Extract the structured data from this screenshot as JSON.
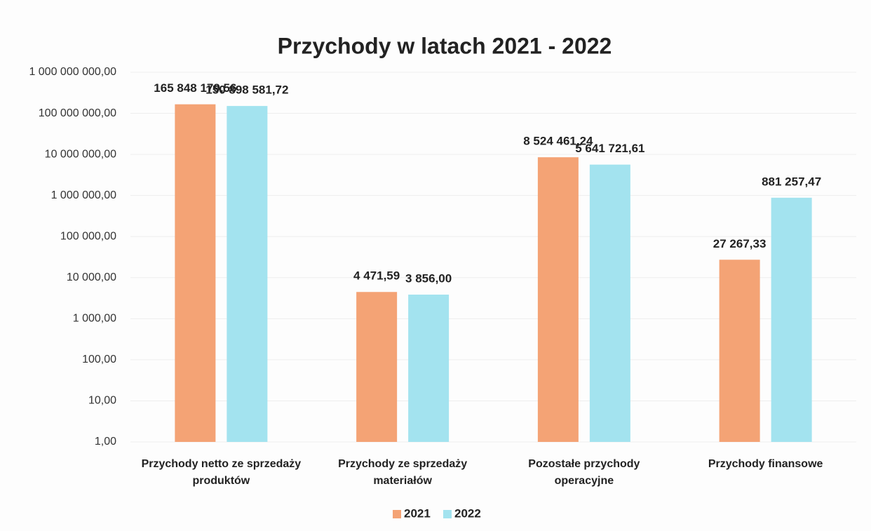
{
  "chart_data": {
    "type": "bar",
    "title": "Przychody w latach 2021 - 2022",
    "categories": [
      "Przychody netto ze sprzedaży produktów",
      "Przychody ze sprzedaży materiałów",
      "Pozostałe przychody operacyjne",
      "Przychody finansowe"
    ],
    "series": [
      {
        "name": "2021",
        "color": "#f4a375",
        "values": [
          165848179.56,
          4471.59,
          8524461.24,
          27267.33
        ],
        "value_labels": [
          "165 848 179,56",
          "4 471,59",
          "8 524 461,24",
          "27 267,33"
        ]
      },
      {
        "name": "2022",
        "color": "#a3e3ef",
        "values": [
          150898581.72,
          3856.0,
          5641721.61,
          881257.47
        ],
        "value_labels": [
          "150 898 581,72",
          "3 856,00",
          "5 641 721,61",
          "881 257,47"
        ]
      }
    ],
    "log_scale": true,
    "ylim": [
      1,
      1000000000
    ],
    "yticks": [
      {
        "value": 1,
        "label": "1,00"
      },
      {
        "value": 10,
        "label": "10,00"
      },
      {
        "value": 100,
        "label": "100,00"
      },
      {
        "value": 1000,
        "label": "1 000,00"
      },
      {
        "value": 10000,
        "label": "10 000,00"
      },
      {
        "value": 100000,
        "label": "100 000,00"
      },
      {
        "value": 1000000,
        "label": "1 000 000,00"
      },
      {
        "value": 10000000,
        "label": "10 000 000,00"
      },
      {
        "value": 100000000,
        "label": "100 000 000,00"
      },
      {
        "value": 1000000000,
        "label": "1 000 000 000,00"
      }
    ],
    "grid": true,
    "legend": "bottom"
  }
}
